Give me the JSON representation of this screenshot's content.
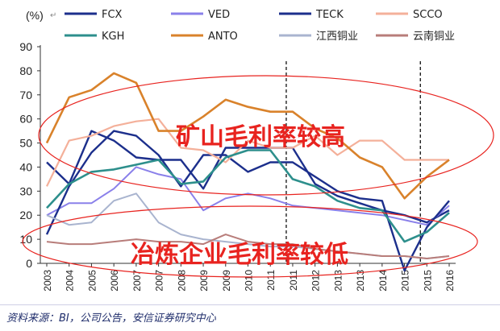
{
  "chart_data": {
    "type": "line",
    "ylabel": "(%)",
    "ylim": [
      0,
      90
    ],
    "yticks": [
      0,
      10,
      20,
      30,
      40,
      50,
      60,
      70,
      80,
      90
    ],
    "x": [
      "2003",
      "2004",
      "2005",
      "2006",
      "2007",
      "2007",
      "2008",
      "2009",
      "2009",
      "2010",
      "2011",
      "2011",
      "2012",
      "2013",
      "2013",
      "2014",
      "2015",
      "2015",
      "2016"
    ],
    "series": [
      {
        "name": "FCX",
        "color": "#1c2f8c",
        "values": [
          42,
          33,
          55,
          51,
          44,
          43,
          43,
          31,
          48,
          48,
          48,
          48,
          33,
          28,
          25,
          22,
          20,
          17,
          22
        ]
      },
      {
        "name": "VED",
        "color": "#8a80ea",
        "values": [
          20,
          25,
          25,
          31,
          40,
          37,
          35,
          22,
          27,
          29,
          27,
          24,
          23,
          22,
          21,
          20,
          18,
          16,
          24
        ]
      },
      {
        "name": "TECK",
        "color": "#1c2f8c",
        "values": [
          12,
          32,
          46,
          55,
          53,
          45,
          32,
          45,
          45,
          38,
          42,
          42,
          36,
          30,
          27,
          26,
          -3,
          15,
          26
        ]
      },
      {
        "name": "SCCO",
        "color": "#f4b09a",
        "values": [
          32,
          51,
          53,
          57,
          59,
          60,
          48,
          47,
          42,
          51,
          48,
          48,
          53,
          45,
          51,
          51,
          43,
          43,
          43
        ]
      },
      {
        "name": "KGH",
        "color": "#2d8f8c",
        "values": [
          23,
          33,
          38,
          39,
          41,
          43,
          33,
          34,
          44,
          47,
          47,
          35,
          32,
          26,
          23,
          22,
          9,
          13,
          21
        ]
      },
      {
        "name": "ANTO",
        "color": "#d9822b",
        "values": [
          50,
          69,
          72,
          79,
          75,
          55,
          55,
          61,
          68,
          65,
          63,
          63,
          56,
          52,
          44,
          40,
          27,
          36,
          43
        ]
      },
      {
        "name": "江西铜业",
        "color": "#a9b4cf",
        "values": [
          20,
          16,
          17,
          26,
          29,
          17,
          12,
          10,
          9,
          8,
          7,
          7,
          6,
          5,
          4,
          3,
          3,
          2,
          3
        ]
      },
      {
        "name": "云南铜业",
        "color": "#b87d7a",
        "values": [
          9,
          8,
          8,
          9,
          10,
          9,
          9,
          8,
          12,
          9,
          8,
          8,
          6,
          5,
          4,
          3,
          3,
          2,
          3
        ]
      }
    ],
    "dashed_vlines_at_index": [
      11,
      17
    ],
    "annotations": [
      "矿山毛利率较高",
      "冶炼企业毛利率较低"
    ]
  },
  "arrow_glyph": "↵",
  "footer": "资料来源：BI，公司公告，安信证券研究中心"
}
